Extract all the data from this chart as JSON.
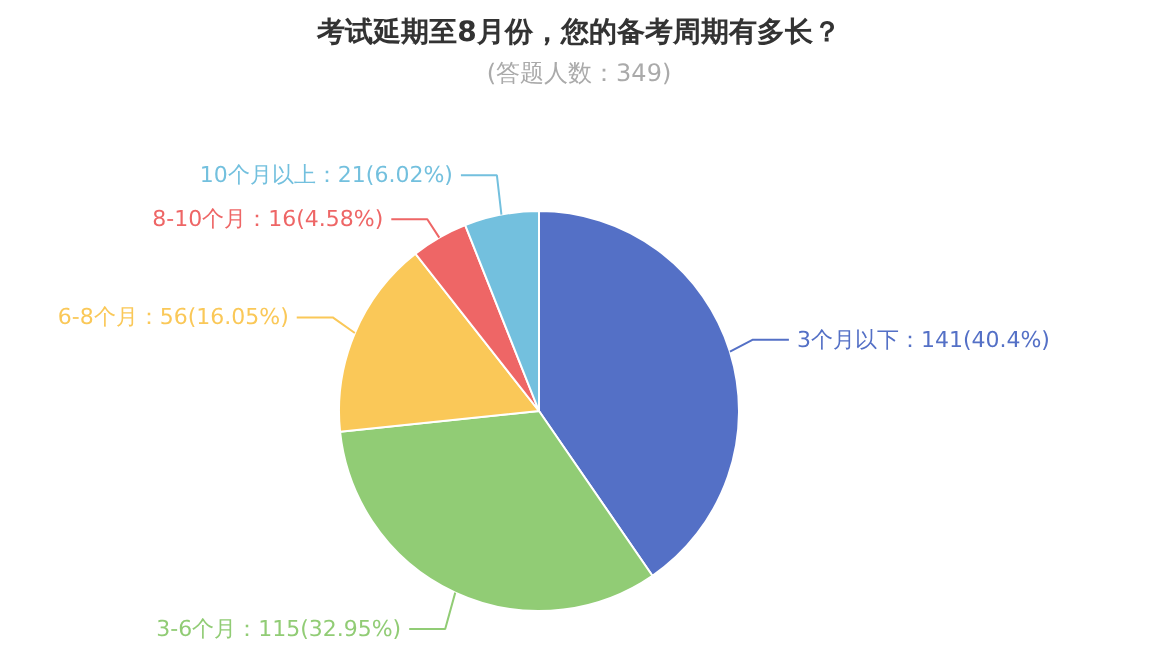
{
  "chart_data": {
    "type": "pie",
    "title": "考试延期至8月份，您的备考周期有多长？",
    "subtitle": "(答题人数：349)",
    "categories": [
      "3个月以下",
      "3-6个月",
      "6-8个月",
      "8-10个月",
      "10个月以上"
    ],
    "values": [
      141,
      115,
      56,
      16,
      21
    ],
    "value_labels": [
      "141(40.4%)",
      "115(32.95%)",
      "56(16.05%)",
      "16(4.58%)",
      "21(6.02%)"
    ],
    "colors": [
      "#5470c6",
      "#91cc75",
      "#fac858",
      "#ee6666",
      "#73c0de"
    ]
  }
}
